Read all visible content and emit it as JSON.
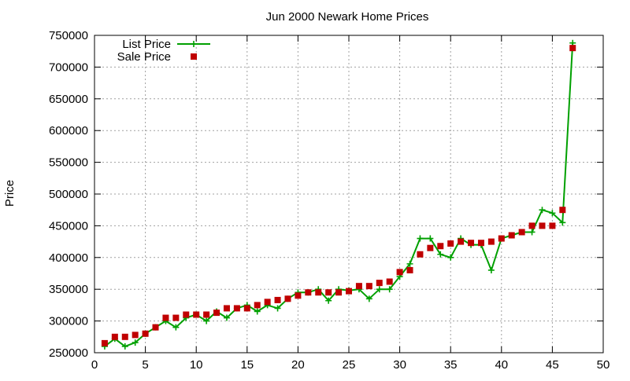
{
  "chart_data": {
    "type": "line",
    "title": "Jun 2000 Newark Home Prices",
    "xlabel": "",
    "ylabel": "Price",
    "xlim": [
      0,
      50
    ],
    "ylim": [
      250000,
      750000
    ],
    "x_ticks": [
      0,
      5,
      10,
      15,
      20,
      25,
      30,
      35,
      40,
      45,
      50
    ],
    "y_ticks": [
      250000,
      300000,
      350000,
      400000,
      450000,
      500000,
      550000,
      600000,
      650000,
      700000,
      750000
    ],
    "grid": true,
    "legend_position": "top-left",
    "x": [
      1,
      2,
      3,
      4,
      5,
      6,
      7,
      8,
      9,
      10,
      11,
      12,
      13,
      14,
      15,
      16,
      17,
      18,
      19,
      20,
      21,
      22,
      23,
      24,
      25,
      26,
      27,
      28,
      29,
      30,
      31,
      32,
      33,
      34,
      35,
      36,
      37,
      38,
      39,
      40,
      41,
      42,
      43,
      44,
      45,
      46,
      47
    ],
    "series": [
      {
        "name": "List Price",
        "color": "#00a000",
        "style": "line-with-plus-markers",
        "values": [
          260000,
          272000,
          260000,
          266000,
          280000,
          290000,
          300000,
          290000,
          305000,
          310000,
          300000,
          315000,
          305000,
          320000,
          325000,
          315000,
          325000,
          320000,
          335000,
          345000,
          345000,
          350000,
          332000,
          350000,
          348000,
          350000,
          335000,
          350000,
          350000,
          370000,
          390000,
          430000,
          430000,
          405000,
          400000,
          430000,
          420000,
          420000,
          380000,
          430000,
          435000,
          440000,
          440000,
          475000,
          470000,
          455000,
          738000
        ]
      },
      {
        "name": "Sale Price",
        "color": "#c00000",
        "style": "square-markers",
        "values": [
          265000,
          275000,
          275000,
          278000,
          280000,
          290000,
          305000,
          305000,
          310000,
          310000,
          310000,
          313000,
          320000,
          320000,
          320000,
          325000,
          330000,
          333000,
          335000,
          340000,
          345000,
          345000,
          345000,
          345000,
          347000,
          355000,
          355000,
          360000,
          362000,
          377000,
          380000,
          405000,
          415000,
          418000,
          422000,
          425000,
          423000,
          423000,
          425000,
          430000,
          435000,
          440000,
          450000,
          450000,
          450000,
          475000,
          730000
        ]
      }
    ]
  }
}
